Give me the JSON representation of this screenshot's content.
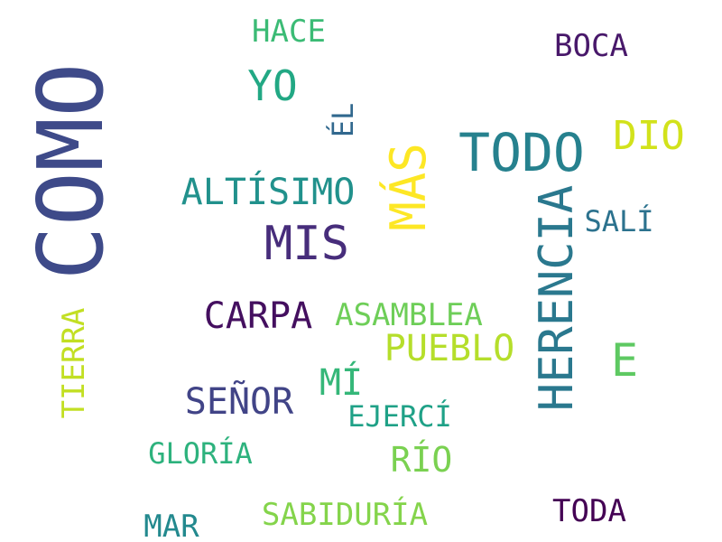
{
  "words": [
    {
      "text": "COMO",
      "color": "#3e4a89",
      "orientation": "vertical"
    },
    {
      "text": "HERENCIA",
      "color": "#2a788e",
      "orientation": "vertical"
    },
    {
      "text": "MÁS",
      "color": "#fde725",
      "orientation": "vertical"
    },
    {
      "text": "TODO",
      "color": "#26818e",
      "orientation": "horizontal"
    },
    {
      "text": "MIS",
      "color": "#472d7b",
      "orientation": "horizontal"
    },
    {
      "text": "YO",
      "color": "#22a884",
      "orientation": "horizontal"
    },
    {
      "text": "ALTÍSIMO",
      "color": "#21918c",
      "orientation": "horizontal"
    },
    {
      "text": "DIO",
      "color": "#d2e21b",
      "orientation": "horizontal"
    },
    {
      "text": "CARPA",
      "color": "#440f5f",
      "orientation": "horizontal"
    },
    {
      "text": "E",
      "color": "#5ec962",
      "orientation": "horizontal"
    },
    {
      "text": "PUEBLO",
      "color": "#b5de2b",
      "orientation": "horizontal"
    },
    {
      "text": "SEÑOR",
      "color": "#414487",
      "orientation": "horizontal"
    },
    {
      "text": "MÍ",
      "color": "#35b779",
      "orientation": "horizontal"
    },
    {
      "text": "ASAMBLEA",
      "color": "#6ece58",
      "orientation": "horizontal"
    },
    {
      "text": "TIERRA",
      "color": "#c2df23",
      "orientation": "vertical"
    },
    {
      "text": "HACE",
      "color": "#3bbb75",
      "orientation": "horizontal"
    },
    {
      "text": "BOCA",
      "color": "#48186a",
      "orientation": "horizontal"
    },
    {
      "text": "ÉL",
      "color": "#31688e",
      "orientation": "vertical"
    },
    {
      "text": "SALÍ",
      "color": "#2c728e",
      "orientation": "horizontal"
    },
    {
      "text": "EJERCÍ",
      "color": "#1fa187",
      "orientation": "horizontal"
    },
    {
      "text": "GLORÍA",
      "color": "#2db27d",
      "orientation": "horizontal"
    },
    {
      "text": "RÍO",
      "color": "#7ad151",
      "orientation": "horizontal"
    },
    {
      "text": "SABIDURÍA",
      "color": "#84d44b",
      "orientation": "horizontal"
    },
    {
      "text": "MAR",
      "color": "#23898e",
      "orientation": "horizontal"
    },
    {
      "text": "TODA",
      "color": "#440154",
      "orientation": "horizontal"
    }
  ]
}
